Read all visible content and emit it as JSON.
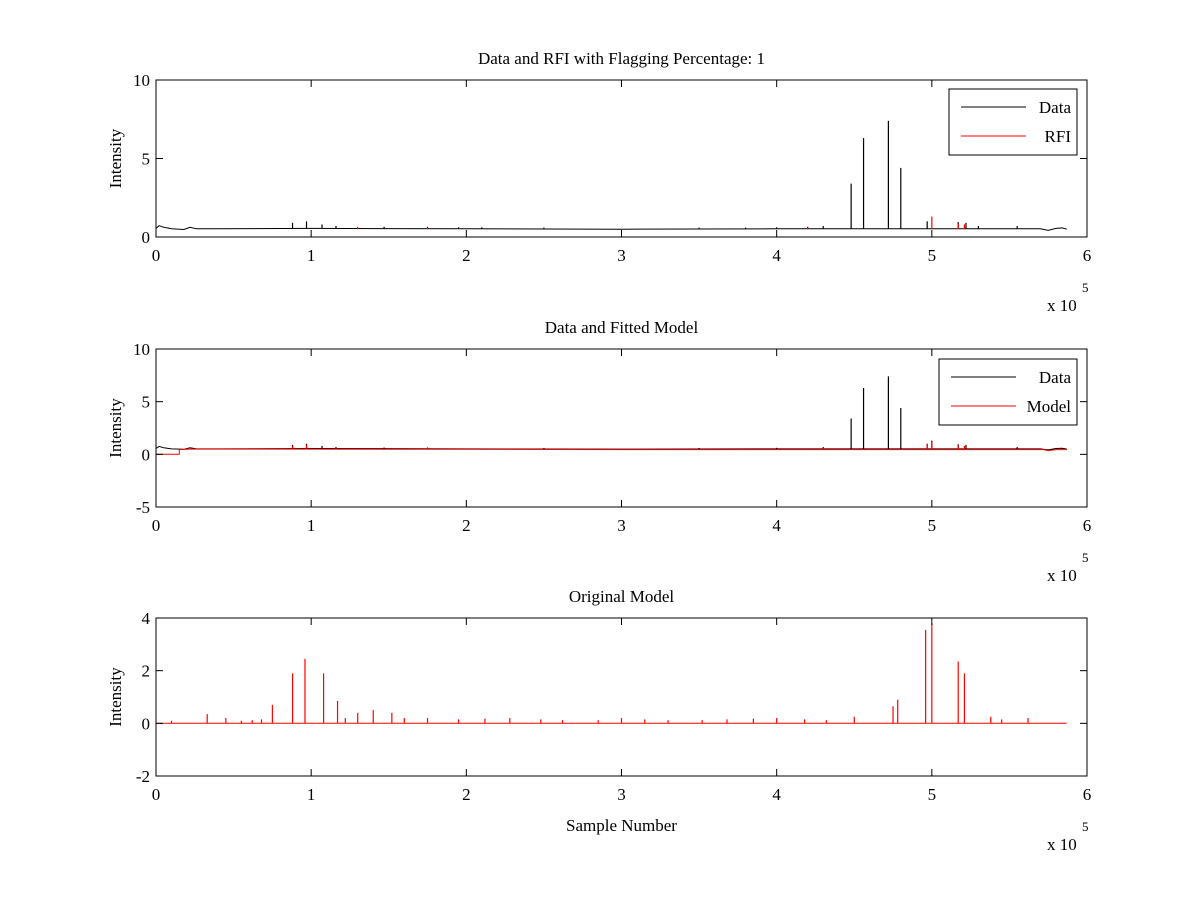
{
  "colors": {
    "data": "#000000",
    "rfi": "#ff0000",
    "model": "#ff0000",
    "background": "#ffffff"
  },
  "chart_data": [
    {
      "type": "line",
      "title": "Data and RFI with Flagging Percentage: 1",
      "xlabel": "",
      "ylabel": "Intensity",
      "xlim": [
        0,
        600000
      ],
      "ylim": [
        0,
        10
      ],
      "xticks": [
        0,
        1,
        2,
        3,
        4,
        5,
        6
      ],
      "yticks": [
        0,
        5,
        10
      ],
      "xscale_label": "x 10",
      "xscale_exponent": "5",
      "legend": {
        "position": "top-right",
        "entries": [
          "Data",
          "RFI"
        ]
      },
      "series": [
        {
          "name": "Data",
          "color": "#000000",
          "baseline": [
            [
              0,
              0.55
            ],
            [
              2000,
              0.72
            ],
            [
              5000,
              0.62
            ],
            [
              10000,
              0.52
            ],
            [
              18000,
              0.48
            ],
            [
              22000,
              0.62
            ],
            [
              26000,
              0.52
            ],
            [
              40000,
              0.52
            ],
            [
              100000,
              0.55
            ],
            [
              200000,
              0.52
            ],
            [
              300000,
              0.5
            ],
            [
              400000,
              0.52
            ],
            [
              500000,
              0.52
            ],
            [
              570000,
              0.52
            ],
            [
              575000,
              0.42
            ],
            [
              580000,
              0.55
            ],
            [
              584000,
              0.58
            ],
            [
              587000,
              0.5
            ]
          ],
          "spikes": [
            [
              88000,
              0.9
            ],
            [
              97000,
              1.0
            ],
            [
              107000,
              0.8
            ],
            [
              116000,
              0.7
            ],
            [
              147000,
              0.65
            ],
            [
              175000,
              0.65
            ],
            [
              195000,
              0.62
            ],
            [
              210000,
              0.62
            ],
            [
              250000,
              0.6
            ],
            [
              350000,
              0.6
            ],
            [
              380000,
              0.6
            ],
            [
              400000,
              0.62
            ],
            [
              420000,
              0.65
            ],
            [
              430000,
              0.7
            ],
            [
              448000,
              3.4
            ],
            [
              456000,
              6.3
            ],
            [
              472000,
              7.4
            ],
            [
              480000,
              4.4
            ],
            [
              497000,
              1.0
            ],
            [
              517000,
              0.95
            ],
            [
              522000,
              0.9
            ],
            [
              530000,
              0.7
            ],
            [
              555000,
              0.7
            ]
          ]
        },
        {
          "name": "RFI",
          "color": "#ff0000",
          "baseline": [],
          "spikes": [
            [
              130000,
              0.65
            ],
            [
              175000,
              0.6
            ],
            [
              420000,
              0.6
            ],
            [
              500000,
              1.3
            ],
            [
              517000,
              0.85
            ],
            [
              521000,
              0.8
            ]
          ]
        }
      ]
    },
    {
      "type": "line",
      "title": "Data and Fitted Model",
      "xlabel": "",
      "ylabel": "Intensity",
      "xlim": [
        0,
        600000
      ],
      "ylim": [
        -5,
        10
      ],
      "xticks": [
        0,
        1,
        2,
        3,
        4,
        5,
        6
      ],
      "yticks": [
        -5,
        0,
        5,
        10
      ],
      "xscale_label": "x 10",
      "xscale_exponent": "5",
      "legend": {
        "position": "top-right",
        "entries": [
          "Data",
          "Model"
        ]
      },
      "series": [
        {
          "name": "Data",
          "color": "#000000",
          "baseline": [
            [
              0,
              0.55
            ],
            [
              2000,
              0.75
            ],
            [
              5000,
              0.62
            ],
            [
              10000,
              0.52
            ],
            [
              18000,
              0.48
            ],
            [
              22000,
              0.62
            ],
            [
              26000,
              0.52
            ],
            [
              40000,
              0.52
            ],
            [
              100000,
              0.55
            ],
            [
              200000,
              0.52
            ],
            [
              300000,
              0.5
            ],
            [
              400000,
              0.52
            ],
            [
              500000,
              0.52
            ],
            [
              570000,
              0.52
            ],
            [
              575000,
              0.42
            ],
            [
              580000,
              0.55
            ],
            [
              584000,
              0.58
            ],
            [
              587000,
              0.5
            ]
          ],
          "spikes": [
            [
              88000,
              0.9
            ],
            [
              97000,
              1.0
            ],
            [
              107000,
              0.8
            ],
            [
              116000,
              0.7
            ],
            [
              147000,
              0.65
            ],
            [
              175000,
              0.65
            ],
            [
              250000,
              0.6
            ],
            [
              350000,
              0.6
            ],
            [
              400000,
              0.62
            ],
            [
              430000,
              0.7
            ],
            [
              448000,
              3.4
            ],
            [
              456000,
              6.3
            ],
            [
              472000,
              7.4
            ],
            [
              480000,
              4.4
            ],
            [
              497000,
              1.0
            ],
            [
              500000,
              1.3
            ],
            [
              517000,
              0.95
            ],
            [
              522000,
              0.9
            ],
            [
              555000,
              0.7
            ]
          ]
        },
        {
          "name": "Model",
          "color": "#ff0000",
          "baseline": [
            [
              0,
              0.0
            ],
            [
              15000,
              0.0
            ],
            [
              15000,
              0.45
            ],
            [
              22000,
              0.5
            ],
            [
              100000,
              0.5
            ],
            [
              200000,
              0.48
            ],
            [
              300000,
              0.45
            ],
            [
              400000,
              0.45
            ],
            [
              500000,
              0.45
            ],
            [
              572000,
              0.45
            ],
            [
              575000,
              0.35
            ],
            [
              580000,
              0.45
            ],
            [
              587000,
              0.45
            ]
          ],
          "spikes": [
            [
              88000,
              0.8
            ],
            [
              97000,
              0.9
            ],
            [
              116000,
              0.6
            ],
            [
              175000,
              0.6
            ],
            [
              430000,
              0.6
            ],
            [
              497000,
              1.0
            ],
            [
              500000,
              1.2
            ],
            [
              517000,
              0.85
            ],
            [
              521000,
              0.8
            ]
          ]
        }
      ]
    },
    {
      "type": "line",
      "title": "Original Model",
      "xlabel": "Sample Number",
      "ylabel": "Intensity",
      "xlim": [
        0,
        600000
      ],
      "ylim": [
        -2,
        4
      ],
      "xticks": [
        0,
        1,
        2,
        3,
        4,
        5,
        6
      ],
      "yticks": [
        -2,
        0,
        2,
        4
      ],
      "xscale_label": "x 10",
      "xscale_exponent": "5",
      "series": [
        {
          "name": "",
          "color": "#ff0000",
          "baseline": [
            [
              0,
              0
            ],
            [
              587000,
              0
            ]
          ],
          "spikes": [
            [
              10000,
              0.1
            ],
            [
              33000,
              0.35
            ],
            [
              45000,
              0.2
            ],
            [
              55000,
              0.1
            ],
            [
              62000,
              0.12
            ],
            [
              68000,
              0.15
            ],
            [
              75000,
              0.7
            ],
            [
              88000,
              1.9
            ],
            [
              96000,
              2.45
            ],
            [
              108000,
              1.9
            ],
            [
              117000,
              0.85
            ],
            [
              122000,
              0.2
            ],
            [
              130000,
              0.4
            ],
            [
              140000,
              0.5
            ],
            [
              152000,
              0.4
            ],
            [
              160000,
              0.2
            ],
            [
              175000,
              0.2
            ],
            [
              195000,
              0.15
            ],
            [
              212000,
              0.18
            ],
            [
              228000,
              0.2
            ],
            [
              248000,
              0.15
            ],
            [
              262000,
              0.12
            ],
            [
              285000,
              0.12
            ],
            [
              300000,
              0.2
            ],
            [
              315000,
              0.15
            ],
            [
              330000,
              0.12
            ],
            [
              352000,
              0.12
            ],
            [
              368000,
              0.15
            ],
            [
              385000,
              0.18
            ],
            [
              400000,
              0.2
            ],
            [
              418000,
              0.15
            ],
            [
              432000,
              0.12
            ],
            [
              450000,
              0.25
            ],
            [
              475000,
              0.65
            ],
            [
              478000,
              0.9
            ],
            [
              496000,
              3.55
            ],
            [
              500000,
              3.8
            ],
            [
              517000,
              2.35
            ],
            [
              521000,
              1.9
            ],
            [
              538000,
              0.25
            ],
            [
              545000,
              0.15
            ],
            [
              562000,
              0.2
            ]
          ]
        }
      ]
    }
  ]
}
